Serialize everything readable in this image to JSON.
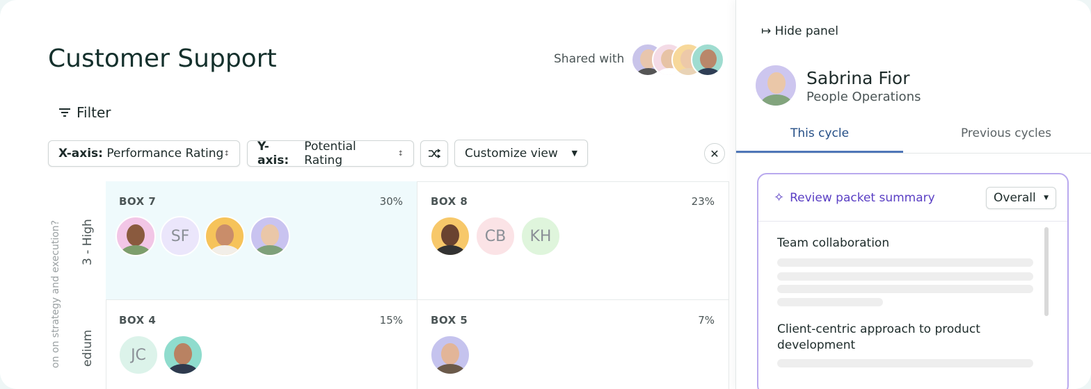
{
  "header": {
    "title": "Customer Support",
    "shared_label": "Shared with"
  },
  "toolbar": {
    "filter": "Filter",
    "x_axis": {
      "label": "X-axis:",
      "value": "Performance Rating"
    },
    "y_axis": {
      "label": "Y-axis:",
      "value": "Potential Rating"
    },
    "customize": "Customize view"
  },
  "grid": {
    "y_axis_question": "on on strategy and execution?",
    "rows": [
      {
        "label": "3 - High",
        "boxes": [
          {
            "name": "BOX 7",
            "percent": "30%",
            "initials": [
              "SF"
            ]
          },
          {
            "name": "BOX 8",
            "percent": "23%",
            "initials": [
              "CB",
              "KH"
            ]
          }
        ]
      },
      {
        "label": "edium",
        "boxes": [
          {
            "name": "BOX 4",
            "percent": "15%",
            "initials": [
              "JC"
            ]
          },
          {
            "name": "BOX 5",
            "percent": "7%",
            "initials": []
          }
        ]
      }
    ]
  },
  "panel": {
    "hide": "Hide panel",
    "person": {
      "name": "Sabrina Fior",
      "role": "People Operations"
    },
    "tabs": [
      "This cycle",
      "Previous cycles"
    ],
    "summary": {
      "title": "Review packet summary",
      "scope": "Overall",
      "sections": [
        "Team collaboration",
        "Client-centric approach to product development"
      ]
    }
  }
}
